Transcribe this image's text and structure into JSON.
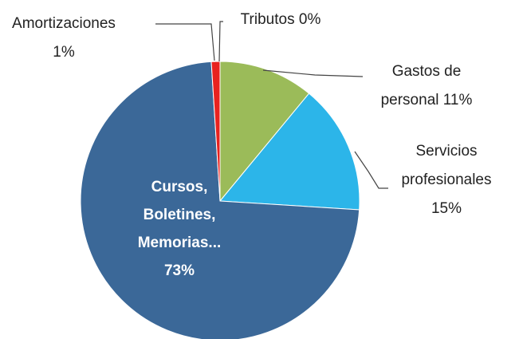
{
  "chart_data": {
    "type": "pie",
    "categories": [
      "Gastos de personal",
      "Servicios profesionales",
      "Cursos, Boletines, Memorias...",
      "Amortizaciones",
      "Tributos"
    ],
    "values": [
      11,
      15,
      73,
      1,
      0
    ],
    "value_labels": [
      "11%",
      "15%",
      "73%",
      "1%",
      "0%"
    ],
    "colors": [
      "#9bbb59",
      "#2cb5e9",
      "#3b6898",
      "#e8221f",
      "#f0c020"
    ],
    "start_angle": 90,
    "direction": "clockwise"
  }
}
